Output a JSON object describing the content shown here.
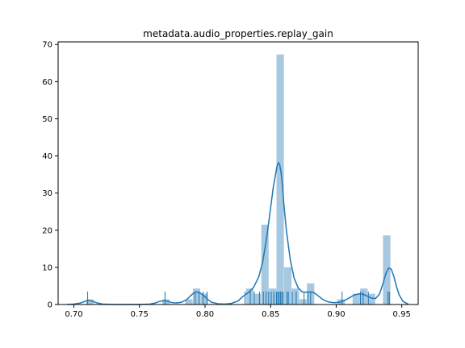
{
  "chart_data": {
    "type": "bar",
    "subtype": "histogram with kde curve and rug",
    "title": "metadata.audio_properties.replay_gain",
    "xlabel": "",
    "ylabel": "",
    "xlim": [
      0.688,
      0.9625
    ],
    "ylim": [
      0,
      70.7
    ],
    "xticks": [
      0.7,
      0.75,
      0.8,
      0.85,
      0.9,
      0.95
    ],
    "xtick_labels": [
      "0.70",
      "0.75",
      "0.80",
      "0.85",
      "0.90",
      "0.95"
    ],
    "yticks": [
      0,
      10,
      20,
      30,
      40,
      50,
      60,
      70
    ],
    "ytick_labels": [
      "0",
      "10",
      "20",
      "30",
      "40",
      "50",
      "60",
      "70"
    ],
    "grid": false,
    "colors": {
      "bars": "#a6c8e0",
      "kde": "#1f77b4",
      "rug": "#1f77b4",
      "axes": "#000000"
    },
    "bins": [
      {
        "x0": 0.7095,
        "x1": 0.7153,
        "count": 1.4
      },
      {
        "x0": 0.7153,
        "x1": 0.7211,
        "count": 0.0
      },
      {
        "x0": 0.7211,
        "x1": 0.7269,
        "count": 0.0
      },
      {
        "x0": 0.7269,
        "x1": 0.7327,
        "count": 0.0
      },
      {
        "x0": 0.7327,
        "x1": 0.7385,
        "count": 0.0
      },
      {
        "x0": 0.7385,
        "x1": 0.7443,
        "count": 0.0
      },
      {
        "x0": 0.7443,
        "x1": 0.7501,
        "count": 0.0
      },
      {
        "x0": 0.7501,
        "x1": 0.7559,
        "count": 0.0
      },
      {
        "x0": 0.7559,
        "x1": 0.7617,
        "count": 0.0
      },
      {
        "x0": 0.7617,
        "x1": 0.7675,
        "count": 0.0
      },
      {
        "x0": 0.7675,
        "x1": 0.7733,
        "count": 1.4
      },
      {
        "x0": 0.7733,
        "x1": 0.7791,
        "count": 0.0
      },
      {
        "x0": 0.7791,
        "x1": 0.7849,
        "count": 0.0
      },
      {
        "x0": 0.7849,
        "x1": 0.7907,
        "count": 1.4
      },
      {
        "x0": 0.7907,
        "x1": 0.7965,
        "count": 4.3
      },
      {
        "x0": 0.7965,
        "x1": 0.8023,
        "count": 2.9
      },
      {
        "x0": 0.8023,
        "x1": 0.8081,
        "count": 0.0
      },
      {
        "x0": 0.8081,
        "x1": 0.8139,
        "count": 0.0
      },
      {
        "x0": 0.8139,
        "x1": 0.8197,
        "count": 0.0
      },
      {
        "x0": 0.8197,
        "x1": 0.8255,
        "count": 0.0
      },
      {
        "x0": 0.8255,
        "x1": 0.8313,
        "count": 0.0
      },
      {
        "x0": 0.8313,
        "x1": 0.8371,
        "count": 4.3
      },
      {
        "x0": 0.8371,
        "x1": 0.8429,
        "count": 2.9
      },
      {
        "x0": 0.8429,
        "x1": 0.8487,
        "count": 21.5
      },
      {
        "x0": 0.8487,
        "x1": 0.8545,
        "count": 4.3
      },
      {
        "x0": 0.8545,
        "x1": 0.8603,
        "count": 67.3
      },
      {
        "x0": 0.8603,
        "x1": 0.8661,
        "count": 10.0
      },
      {
        "x0": 0.8661,
        "x1": 0.8719,
        "count": 4.3
      },
      {
        "x0": 0.8719,
        "x1": 0.8777,
        "count": 1.4
      },
      {
        "x0": 0.8777,
        "x1": 0.8835,
        "count": 5.7
      },
      {
        "x0": 0.8835,
        "x1": 0.8893,
        "count": 0.0
      },
      {
        "x0": 0.8893,
        "x1": 0.8951,
        "count": 0.0
      },
      {
        "x0": 0.8951,
        "x1": 0.9009,
        "count": 0.0
      },
      {
        "x0": 0.9009,
        "x1": 0.9067,
        "count": 1.4
      },
      {
        "x0": 0.9067,
        "x1": 0.9125,
        "count": 0.0
      },
      {
        "x0": 0.9125,
        "x1": 0.9183,
        "count": 2.9
      },
      {
        "x0": 0.9183,
        "x1": 0.9241,
        "count": 4.3
      },
      {
        "x0": 0.9241,
        "x1": 0.9299,
        "count": 2.9
      },
      {
        "x0": 0.9299,
        "x1": 0.9357,
        "count": 0.0
      },
      {
        "x0": 0.9357,
        "x1": 0.9415,
        "count": 18.6
      }
    ],
    "kde": {
      "x": [
        0.695,
        0.7,
        0.705,
        0.708,
        0.711,
        0.714,
        0.718,
        0.722,
        0.73,
        0.74,
        0.75,
        0.758,
        0.762,
        0.765,
        0.768,
        0.77,
        0.772,
        0.775,
        0.778,
        0.782,
        0.786,
        0.79,
        0.793,
        0.796,
        0.799,
        0.802,
        0.805,
        0.81,
        0.815,
        0.82,
        0.825,
        0.829,
        0.833,
        0.837,
        0.841,
        0.844,
        0.847,
        0.85,
        0.852,
        0.854,
        0.855,
        0.856,
        0.857,
        0.858,
        0.859,
        0.86,
        0.862,
        0.865,
        0.868,
        0.871,
        0.874,
        0.877,
        0.88,
        0.883,
        0.886,
        0.89,
        0.894,
        0.898,
        0.902,
        0.906,
        0.91,
        0.914,
        0.918,
        0.921,
        0.924,
        0.927,
        0.93,
        0.933,
        0.936,
        0.938,
        0.94,
        0.942,
        0.944,
        0.946,
        0.948,
        0.951,
        0.955
      ],
      "y": [
        0.0,
        0.1,
        0.4,
        0.8,
        1.1,
        0.9,
        0.4,
        0.1,
        0.0,
        0.0,
        0.0,
        0.1,
        0.4,
        0.8,
        1.0,
        1.0,
        0.8,
        0.5,
        0.4,
        0.6,
        1.3,
        2.7,
        3.4,
        3.2,
        2.4,
        1.4,
        0.6,
        0.2,
        0.1,
        0.3,
        0.9,
        2.2,
        3.2,
        4.6,
        7.5,
        11.5,
        18.0,
        26.0,
        31.5,
        35.5,
        37.5,
        38.2,
        37.5,
        35.5,
        32.0,
        27.5,
        20.0,
        12.0,
        7.0,
        4.5,
        3.4,
        3.3,
        3.4,
        3.2,
        2.4,
        1.3,
        0.7,
        0.5,
        0.6,
        1.0,
        1.8,
        2.6,
        2.9,
        2.7,
        2.2,
        1.7,
        1.6,
        2.8,
        6.0,
        8.5,
        9.8,
        9.5,
        7.5,
        4.8,
        2.6,
        0.8,
        0.1
      ]
    },
    "rug": [
      0.7105,
      0.7695,
      0.7925,
      0.7955,
      0.7985,
      0.8015,
      0.8305,
      0.8345,
      0.8375,
      0.8415,
      0.8445,
      0.8465,
      0.8485,
      0.8505,
      0.8525,
      0.8545,
      0.8555,
      0.8565,
      0.8575,
      0.8585,
      0.8595,
      0.8625,
      0.8635,
      0.8665,
      0.8695,
      0.8755,
      0.8785,
      0.8805,
      0.9045,
      0.9185,
      0.9205,
      0.9245,
      0.9395,
      0.9405
    ]
  }
}
